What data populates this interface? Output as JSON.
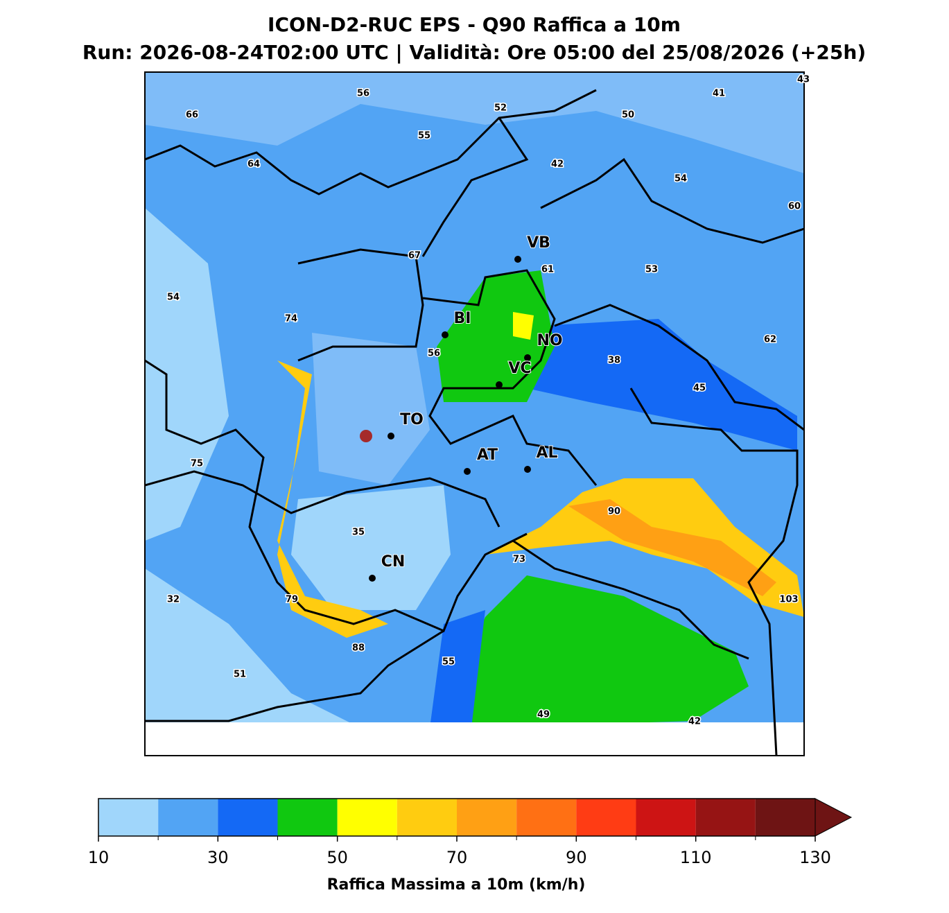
{
  "title": "ICON-D2-RUC EPS - Q90 Raffica a 10m",
  "subtitle": "Run: 2026-08-24T02:00 UTC | Validità: Ore 05:00 del 25/08/2026 (+25h)",
  "cities": [
    "VB",
    "BI",
    "NO",
    "VC",
    "TO",
    "AT",
    "AL",
    "CN"
  ],
  "value_labels": [
    56,
    52,
    50,
    41,
    43,
    66,
    55,
    64,
    42,
    54,
    60,
    67,
    61,
    53,
    54,
    74,
    62,
    56,
    38,
    45,
    75,
    90,
    35,
    73,
    32,
    79,
    103,
    88,
    55,
    51,
    49,
    42
  ],
  "colorbar": {
    "label": "Raffica Massima a 10m (km/h)",
    "levels": [
      10,
      20,
      30,
      40,
      50,
      60,
      70,
      80,
      90,
      100,
      110,
      120,
      130
    ],
    "colors": [
      "#a0d6fb",
      "#52a4f4",
      "#1469f5",
      "#10c810",
      "#ffff00",
      "#ffcc10",
      "#ffa014",
      "#ff7014",
      "#ff3c14",
      "#cd1414",
      "#961414",
      "#6e1414"
    ],
    "ticks": [
      10,
      30,
      50,
      70,
      90,
      110,
      130
    ]
  }
}
